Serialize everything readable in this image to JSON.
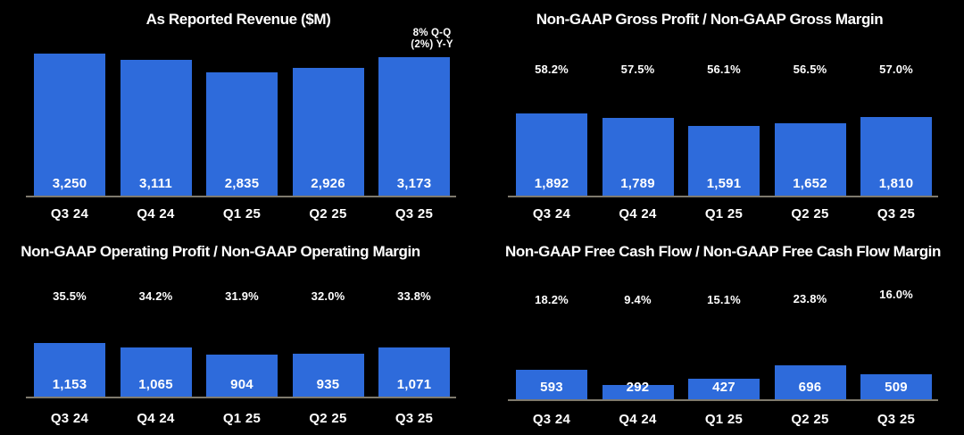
{
  "colors": {
    "background": "#000000",
    "bar_fill": "#2e6bdb",
    "axis_line": "#7f7a6d",
    "text": "#ffffff"
  },
  "chart_data": [
    {
      "type": "bar",
      "title": "As Reported Revenue ($M)",
      "categories": [
        "Q3 24",
        "Q4 24",
        "Q1 25",
        "Q2 25",
        "Q3 25"
      ],
      "values": [
        3250,
        3111,
        2835,
        2926,
        3173
      ],
      "value_labels": [
        "3,250",
        "3,111",
        "2,835",
        "2,926",
        "3,173"
      ],
      "annotation_lines": [
        "8% Q-Q",
        "(2%) Y-Y"
      ],
      "xlabel": "",
      "ylabel": "",
      "ylim": [
        0,
        3400
      ],
      "grid": false,
      "legend": "none"
    },
    {
      "type": "bar",
      "title": "Non-GAAP Gross Profit / Non-GAAP Gross Margin",
      "categories": [
        "Q3 24",
        "Q4 24",
        "Q1 25",
        "Q2 25",
        "Q3 25"
      ],
      "values": [
        1892,
        1789,
        1591,
        1652,
        1810
      ],
      "value_labels": [
        "1,892",
        "1,789",
        "1,591",
        "1,652",
        "1,810"
      ],
      "margin_values": [
        58.2,
        57.5,
        56.1,
        56.5,
        57.0
      ],
      "margin_labels": [
        "58.2%",
        "57.5%",
        "56.1%",
        "56.5%",
        "57.0%"
      ],
      "xlabel": "",
      "ylabel": "",
      "ylim": [
        0,
        3400
      ],
      "grid": false,
      "legend": "none"
    },
    {
      "type": "bar",
      "title": "Non-GAAP Operating Profit / Non-GAAP Operating Margin",
      "categories": [
        "Q3 24",
        "Q4 24",
        "Q1 25",
        "Q2 25",
        "Q3 25"
      ],
      "values": [
        1153,
        1065,
        904,
        935,
        1071
      ],
      "value_labels": [
        "1,153",
        "1,065",
        "904",
        "935",
        "1,071"
      ],
      "margin_values": [
        35.5,
        34.2,
        31.9,
        32.0,
        33.8
      ],
      "margin_labels": [
        "35.5%",
        "34.2%",
        "31.9%",
        "32.0%",
        "33.8%"
      ],
      "xlabel": "",
      "ylabel": "",
      "ylim": [
        0,
        1200
      ],
      "grid": false,
      "legend": "none"
    },
    {
      "type": "bar",
      "title": "Non-GAAP Free Cash Flow / Non-GAAP Free Cash Flow Margin",
      "categories": [
        "Q3 24",
        "Q4 24",
        "Q1 25",
        "Q2 25",
        "Q3 25"
      ],
      "values": [
        593,
        292,
        427,
        696,
        509
      ],
      "value_labels": [
        "593",
        "292",
        "427",
        "696",
        "509"
      ],
      "margin_values": [
        18.2,
        9.4,
        15.1,
        23.8,
        16.0
      ],
      "margin_labels": [
        "18.2%",
        "9.4%",
        "15.1%",
        "23.8%",
        "16.0%"
      ],
      "xlabel": "",
      "ylabel": "",
      "ylim": [
        0,
        700
      ],
      "grid": false,
      "legend": "none"
    }
  ]
}
